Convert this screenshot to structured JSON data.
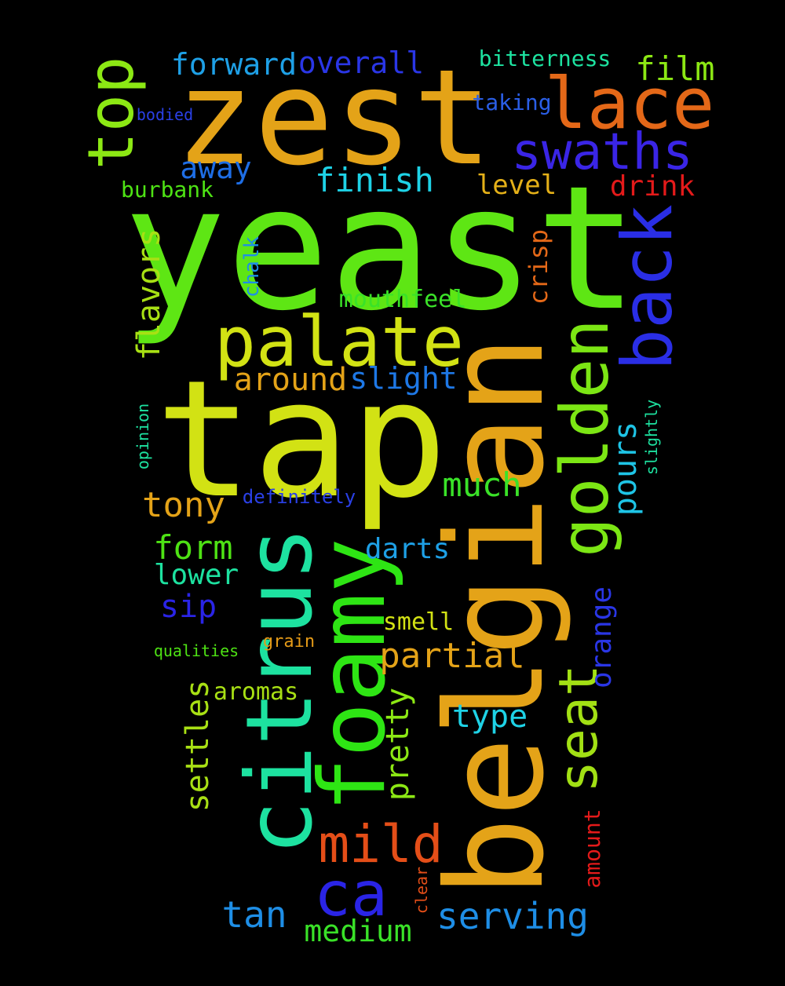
{
  "words": {
    "yeast": {
      "text": "yeast",
      "color": "#5ee614"
    },
    "zest": {
      "text": "zest",
      "color": "#e4a318"
    },
    "tap": {
      "text": "tap",
      "color": "#d2e214"
    },
    "belgian": {
      "text": "belgian",
      "color": "#e4a318"
    },
    "citrus": {
      "text": "citrus",
      "color": "#1de2a0"
    },
    "foamy": {
      "text": "foamy",
      "color": "#2ee514"
    },
    "palate": {
      "text": "palate",
      "color": "#d2e214"
    },
    "lace": {
      "text": "lace",
      "color": "#e46818"
    },
    "swaths": {
      "text": "swaths",
      "color": "#3a25e6"
    },
    "top": {
      "text": "top",
      "color": "#8ce814"
    },
    "back": {
      "text": "back",
      "color": "#2a2ee6"
    },
    "golden": {
      "text": "golden",
      "color": "#7ce614"
    },
    "seat": {
      "text": "seat",
      "color": "#a2e014"
    },
    "mild": {
      "text": "mild",
      "color": "#e44e18"
    },
    "ca": {
      "text": "ca",
      "color": "#2a24e6"
    },
    "forward": {
      "text": "forward",
      "color": "#1ea0e6"
    },
    "overall": {
      "text": "overall",
      "color": "#2a36e6"
    },
    "film": {
      "text": "film",
      "color": "#8ce814"
    },
    "bitterness": {
      "text": "bitterness",
      "color": "#1de2a0"
    },
    "taking": {
      "text": "taking",
      "color": "#2a5ee6"
    },
    "bodied": {
      "text": "bodied",
      "color": "#2a40e6"
    },
    "away": {
      "text": "away",
      "color": "#1e6ee6"
    },
    "finish": {
      "text": "finish",
      "color": "#1ed2e6"
    },
    "level": {
      "text": "level",
      "color": "#e4b018"
    },
    "drink": {
      "text": "drink",
      "color": "#e41a1a"
    },
    "burbank": {
      "text": "burbank",
      "color": "#4ee214"
    },
    "flavors": {
      "text": "flavors",
      "color": "#a8e014"
    },
    "chalk": {
      "text": "chalk",
      "color": "#1e8ee6"
    },
    "crisp": {
      "text": "crisp",
      "color": "#e46818"
    },
    "mouthfeel": {
      "text": "mouthfeel",
      "color": "#3ae228"
    },
    "around": {
      "text": "around",
      "color": "#e4a318"
    },
    "slight": {
      "text": "slight",
      "color": "#1e78e6"
    },
    "pours": {
      "text": "pours",
      "color": "#1ec4e6"
    },
    "opinion": {
      "text": "opinion",
      "color": "#1de2a0"
    },
    "slightly": {
      "text": "slightly",
      "color": "#1de2a0"
    },
    "much": {
      "text": "much",
      "color": "#3ae228"
    },
    "tony": {
      "text": "tony",
      "color": "#e4a318"
    },
    "definitely": {
      "text": "definitely",
      "color": "#2a40e6"
    },
    "form": {
      "text": "form",
      "color": "#4ee214"
    },
    "darts": {
      "text": "darts",
      "color": "#1ea0e6"
    },
    "lower": {
      "text": "lower",
      "color": "#1de2a0"
    },
    "sip": {
      "text": "sip",
      "color": "#2a24e6"
    },
    "orange": {
      "text": "orange",
      "color": "#2a36e6"
    },
    "smell": {
      "text": "smell",
      "color": "#d2e214"
    },
    "grain": {
      "text": "grain",
      "color": "#e49a18"
    },
    "qualities": {
      "text": "qualities",
      "color": "#4ee214"
    },
    "partial": {
      "text": "partial",
      "color": "#e4a318"
    },
    "settles": {
      "text": "settles",
      "color": "#a8e014"
    },
    "aromas": {
      "text": "aromas",
      "color": "#a8e014"
    },
    "pretty": {
      "text": "pretty",
      "color": "#8ce814"
    },
    "type": {
      "text": "type",
      "color": "#1ed2e6"
    },
    "amount": {
      "text": "amount",
      "color": "#e41a1a"
    },
    "clear": {
      "text": "clear",
      "color": "#e44e18"
    },
    "tan": {
      "text": "tan",
      "color": "#1e8ee6"
    },
    "medium": {
      "text": "medium",
      "color": "#3ae228"
    },
    "serving": {
      "text": "serving",
      "color": "#1e8ee6"
    }
  }
}
